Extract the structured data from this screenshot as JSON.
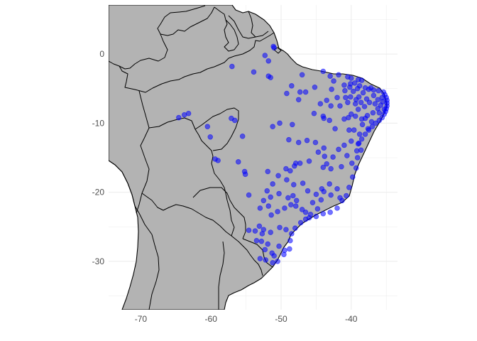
{
  "map": {
    "x_ticks": [
      {
        "value": -70,
        "label": "-70"
      },
      {
        "value": -60,
        "label": "-60"
      },
      {
        "value": -50,
        "label": "-50"
      },
      {
        "value": -40,
        "label": "-40"
      }
    ],
    "y_ticks": [
      {
        "value": 0,
        "label": "0"
      },
      {
        "value": -10,
        "label": "-10"
      },
      {
        "value": -20,
        "label": "-20"
      },
      {
        "value": -30,
        "label": "-30"
      }
    ],
    "xlim": [
      -74.6,
      -33.4
    ],
    "ylim": [
      -37.0,
      7.1
    ],
    "colors": {
      "land": "#b3b3b3",
      "border": "#000000",
      "points": "#0000ff",
      "grid": "#ebebeb",
      "background": "#ffffff"
    }
  },
  "chart_data": {
    "type": "scatter",
    "xlabel": "",
    "ylabel": "",
    "grid": true,
    "series": [
      {
        "points": [
          [
            -51.1,
            1.1
          ],
          [
            -51.0,
            0.9
          ],
          [
            -52.3,
            -0.2
          ],
          [
            -51.8,
            -1.0
          ],
          [
            -57.0,
            -1.8
          ],
          [
            -53.9,
            -2.6
          ],
          [
            -51.8,
            -3.2
          ],
          [
            -51.5,
            -3.4
          ],
          [
            -44.0,
            -2.5
          ],
          [
            -43.0,
            -3.2
          ],
          [
            -42.5,
            -3.9
          ],
          [
            -41.8,
            -3.0
          ],
          [
            -40.5,
            -3.3
          ],
          [
            -40.0,
            -3.5
          ],
          [
            -39.0,
            -3.7
          ],
          [
            -38.5,
            -3.8
          ],
          [
            -41.0,
            -4.5
          ],
          [
            -40.2,
            -4.8
          ],
          [
            -39.5,
            -4.2
          ],
          [
            -38.8,
            -4.6
          ],
          [
            -38.0,
            -4.9
          ],
          [
            -37.5,
            -5.1
          ],
          [
            -36.8,
            -5.2
          ],
          [
            -36.1,
            -5.3
          ],
          [
            -35.4,
            -5.5
          ],
          [
            -35.2,
            -5.9
          ],
          [
            -35.0,
            -6.3
          ],
          [
            -34.9,
            -6.7
          ],
          [
            -34.9,
            -7.1
          ],
          [
            -34.9,
            -7.5
          ],
          [
            -35.0,
            -7.9
          ],
          [
            -35.1,
            -8.3
          ],
          [
            -35.3,
            -8.7
          ],
          [
            -35.6,
            -9.2
          ],
          [
            -36.0,
            -9.6
          ],
          [
            -36.5,
            -10.0
          ],
          [
            -37.0,
            -10.5
          ],
          [
            -37.5,
            -11.0
          ],
          [
            -38.0,
            -11.6
          ],
          [
            -38.5,
            -12.3
          ],
          [
            -39.0,
            -13.0
          ],
          [
            -39.2,
            -14.0
          ],
          [
            -39.1,
            -15.0
          ],
          [
            -39.3,
            -16.5
          ],
          [
            -39.8,
            -17.8
          ],
          [
            -40.3,
            -19.3
          ],
          [
            -40.7,
            -20.5
          ],
          [
            -41.3,
            -21.2
          ],
          [
            -42.0,
            -22.3
          ],
          [
            -43.0,
            -22.9
          ],
          [
            -44.0,
            -23.1
          ],
          [
            -45.0,
            -23.5
          ],
          [
            -46.0,
            -23.7
          ],
          [
            -46.5,
            -23.9
          ],
          [
            -47.2,
            -24.4
          ],
          [
            -48.0,
            -25.2
          ],
          [
            -48.5,
            -26.0
          ],
          [
            -48.7,
            -27.0
          ],
          [
            -48.8,
            -28.2
          ],
          [
            -49.6,
            -29.0
          ],
          [
            -50.5,
            -30.0
          ],
          [
            -51.2,
            -30.2
          ],
          [
            -52.2,
            -29.8
          ],
          [
            -53.0,
            -29.6
          ],
          [
            -53.5,
            -27.0
          ],
          [
            -52.8,
            -27.1
          ],
          [
            -51.9,
            -27.5
          ],
          [
            -50.3,
            -27.8
          ],
          [
            -49.5,
            -28.4
          ],
          [
            -51.3,
            -28.8
          ],
          [
            -52.3,
            -28.3
          ],
          [
            -51.0,
            -29.2
          ],
          [
            -53.7,
            -25.6
          ],
          [
            -52.5,
            -25.4
          ],
          [
            -51.5,
            -25.8
          ],
          [
            -50.2,
            -25.1
          ],
          [
            -49.3,
            -25.4
          ],
          [
            -54.6,
            -25.5
          ],
          [
            -53.1,
            -24.9
          ],
          [
            -52.7,
            -26.0
          ],
          [
            -51.4,
            -23.3
          ],
          [
            -50.5,
            -22.8
          ],
          [
            -49.5,
            -22.3
          ],
          [
            -48.6,
            -21.8
          ],
          [
            -47.8,
            -21.2
          ],
          [
            -47.0,
            -22.5
          ],
          [
            -46.5,
            -22.9
          ],
          [
            -45.8,
            -23.2
          ],
          [
            -47.9,
            -22.0
          ],
          [
            -49.0,
            -20.8
          ],
          [
            -50.3,
            -20.2
          ],
          [
            -51.5,
            -20.7
          ],
          [
            -52.5,
            -21.2
          ],
          [
            -53.0,
            -22.3
          ],
          [
            -51.8,
            -22.0
          ],
          [
            -48.3,
            -20.5
          ],
          [
            -45.5,
            -21.5
          ],
          [
            -44.8,
            -22.4
          ],
          [
            -44.3,
            -21.1
          ],
          [
            -43.9,
            -19.9
          ],
          [
            -43.1,
            -18.8
          ],
          [
            -42.0,
            -19.5
          ],
          [
            -41.6,
            -20.8
          ],
          [
            -42.9,
            -20.4
          ],
          [
            -44.2,
            -19.5
          ],
          [
            -45.0,
            -20.3
          ],
          [
            -46.2,
            -19.8
          ],
          [
            -46.9,
            -18.7
          ],
          [
            -48.2,
            -18.9
          ],
          [
            -49.2,
            -18.2
          ],
          [
            -48.7,
            -16.9
          ],
          [
            -49.3,
            -16.6
          ],
          [
            -50.4,
            -17.6
          ],
          [
            -51.9,
            -17.0
          ],
          [
            -51.2,
            -18.8
          ],
          [
            -52.0,
            -19.8
          ],
          [
            -54.6,
            -20.4
          ],
          [
            -55.2,
            -17.0
          ],
          [
            -55.1,
            -17.4
          ],
          [
            -56.1,
            -15.6
          ],
          [
            -59.4,
            -15.2
          ],
          [
            -59.0,
            -15.4
          ],
          [
            -60.1,
            -12.0
          ],
          [
            -63.8,
            -8.8
          ],
          [
            -63.2,
            -8.6
          ],
          [
            -64.6,
            -9.2
          ],
          [
            -60.5,
            -10.5
          ],
          [
            -55.5,
            -11.9
          ],
          [
            -57.1,
            -9.3
          ],
          [
            -56.6,
            -9.6
          ],
          [
            -51.2,
            -10.5
          ],
          [
            -50.2,
            -10.0
          ],
          [
            -48.4,
            -10.2
          ],
          [
            -48.9,
            -12.4
          ],
          [
            -47.5,
            -12.8
          ],
          [
            -46.3,
            -12.5
          ],
          [
            -45.1,
            -12.8
          ],
          [
            -44.7,
            -14.2
          ],
          [
            -43.8,
            -14.8
          ],
          [
            -43.5,
            -15.9
          ],
          [
            -42.9,
            -16.6
          ],
          [
            -44.0,
            -16.4
          ],
          [
            -46.0,
            -15.5
          ],
          [
            -47.3,
            -15.8
          ],
          [
            -47.9,
            -15.8
          ],
          [
            -48.1,
            -16.2
          ],
          [
            -43.9,
            -13.6
          ],
          [
            -42.6,
            -14.9
          ],
          [
            -41.8,
            -13.8
          ],
          [
            -41.0,
            -13.2
          ],
          [
            -40.6,
            -14.7
          ],
          [
            -41.4,
            -16.3
          ],
          [
            -39.9,
            -15.8
          ],
          [
            -40.3,
            -11.0
          ],
          [
            -41.0,
            -9.4
          ],
          [
            -42.3,
            -10.8
          ],
          [
            -43.1,
            -9.6
          ],
          [
            -44.0,
            -9.0
          ],
          [
            -45.3,
            -8.6
          ],
          [
            -43.5,
            -6.7
          ],
          [
            -42.0,
            -6.3
          ],
          [
            -41.6,
            -7.5
          ],
          [
            -42.9,
            -7.5
          ],
          [
            -43.9,
            -9.3
          ],
          [
            -44.4,
            -7.2
          ],
          [
            -47.3,
            -5.5
          ],
          [
            -47.5,
            -6.6
          ],
          [
            -49.2,
            -5.7
          ],
          [
            -48.5,
            -4.6
          ],
          [
            -47.0,
            -3.0
          ],
          [
            -45.2,
            -4.8
          ],
          [
            -46.5,
            -5.5
          ],
          [
            -42.8,
            -5.1
          ],
          [
            -40.5,
            -7.0
          ],
          [
            -39.4,
            -7.2
          ],
          [
            -39.0,
            -8.0
          ],
          [
            -38.1,
            -7.6
          ],
          [
            -37.4,
            -7.0
          ],
          [
            -36.6,
            -7.2
          ],
          [
            -36.2,
            -7.9
          ],
          [
            -36.9,
            -8.5
          ],
          [
            -37.7,
            -8.9
          ],
          [
            -38.5,
            -9.4
          ],
          [
            -39.4,
            -9.0
          ],
          [
            -40.0,
            -8.7
          ],
          [
            -40.4,
            -9.2
          ],
          [
            -38.3,
            -5.6
          ],
          [
            -38.9,
            -6.2
          ],
          [
            -39.7,
            -5.4
          ],
          [
            -40.1,
            -6.2
          ],
          [
            -37.2,
            -4.9
          ],
          [
            -36.8,
            -6.0
          ],
          [
            -36.2,
            -6.6
          ],
          [
            -35.8,
            -7.4
          ],
          [
            -35.5,
            -6.9
          ],
          [
            -35.3,
            -8.0
          ],
          [
            -36.0,
            -8.5
          ],
          [
            -35.6,
            -6.3
          ],
          [
            -37.8,
            -6.5
          ],
          [
            -38.6,
            -7.0
          ],
          [
            -39.3,
            -6.6
          ],
          [
            -40.1,
            -4.3
          ],
          [
            -40.9,
            -5.3
          ],
          [
            -39.1,
            -5.0
          ],
          [
            -40.8,
            -6.3
          ],
          [
            -38.0,
            -9.3
          ],
          [
            -37.1,
            -9.8
          ],
          [
            -38.4,
            -10.2
          ],
          [
            -37.6,
            -10.8
          ],
          [
            -38.8,
            -11.6
          ],
          [
            -39.6,
            -11.0
          ],
          [
            -40.0,
            -12.6
          ],
          [
            -38.6,
            -13.9
          ],
          [
            -38.9,
            -12.9
          ]
        ]
      }
    ]
  }
}
